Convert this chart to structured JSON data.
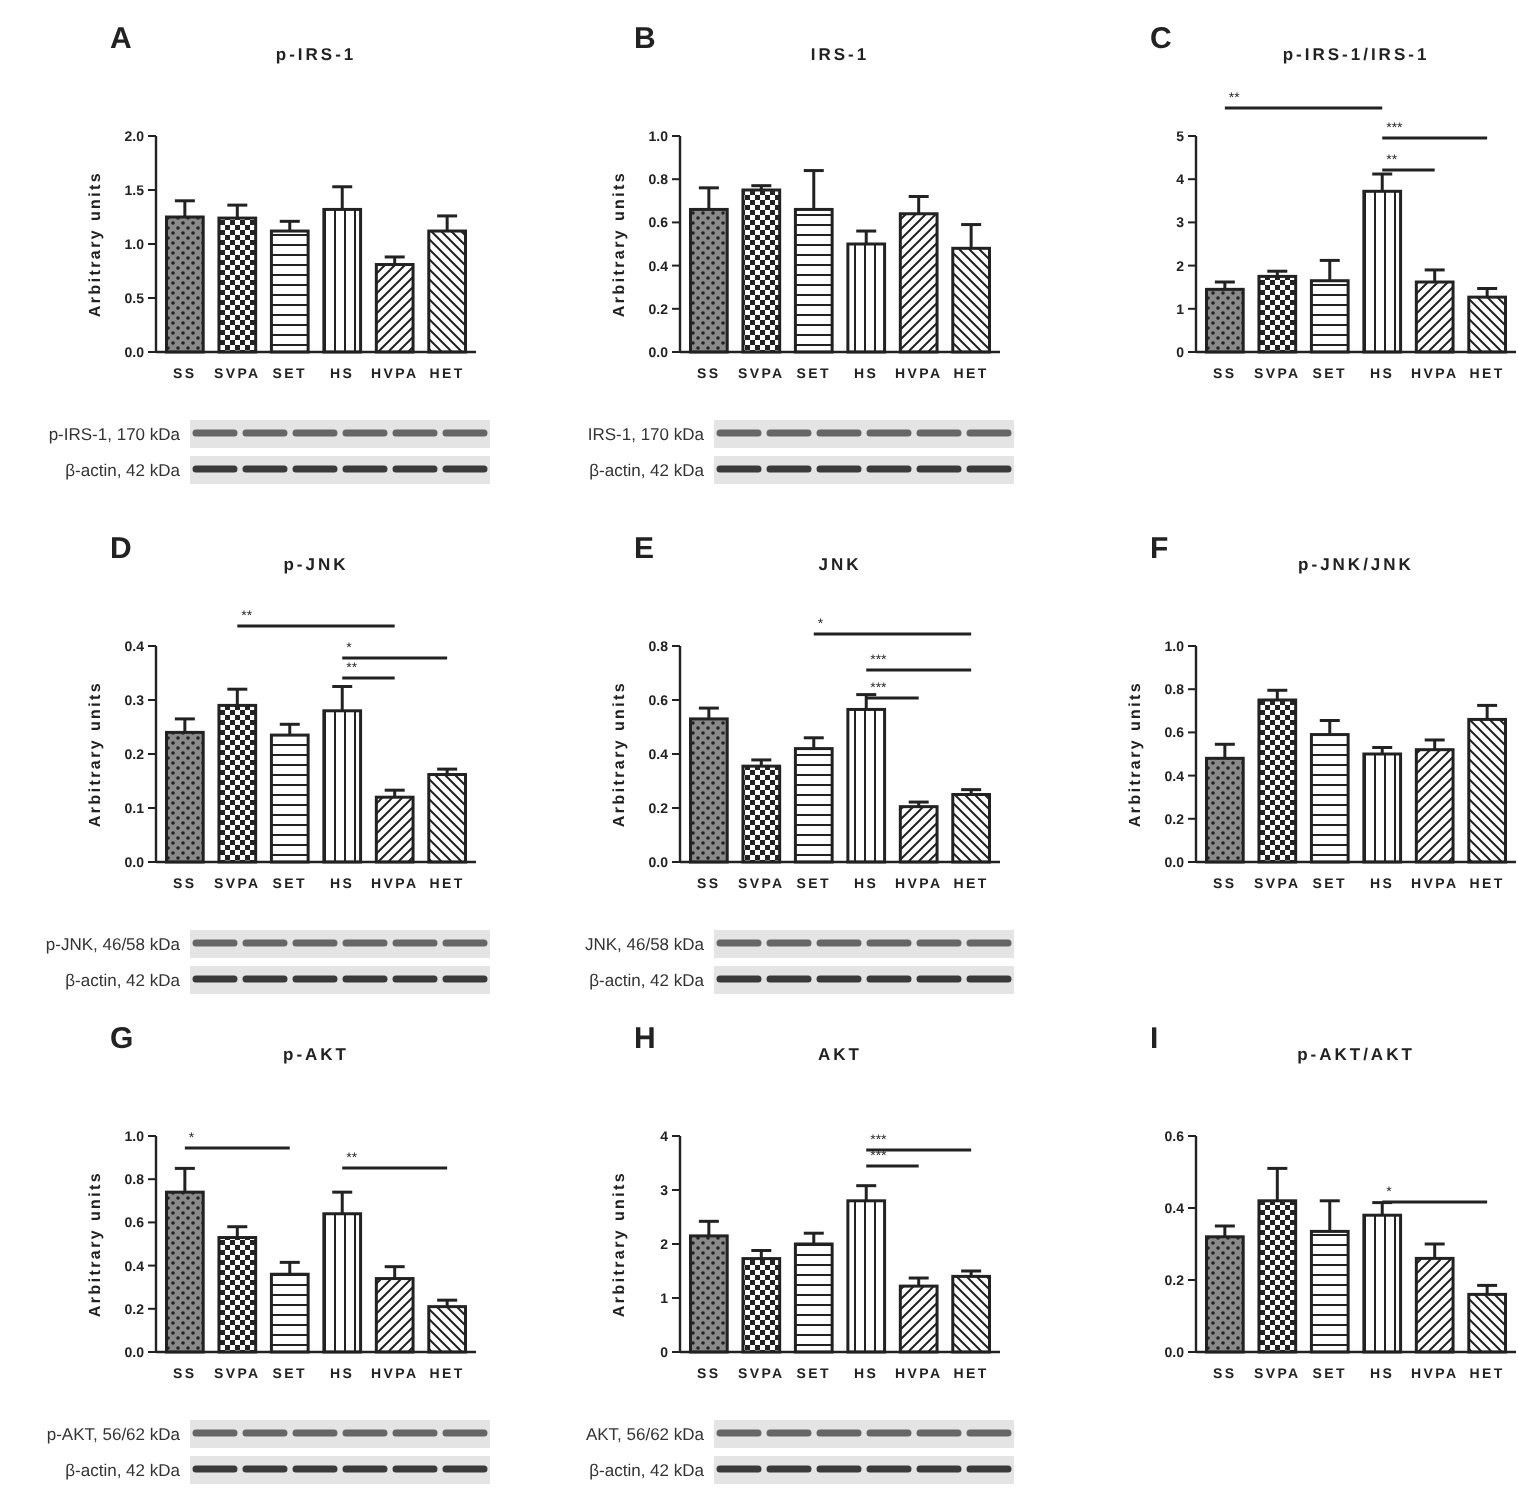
{
  "chart_data": [
    {
      "type": "bar",
      "title": "p-IRS-1",
      "ylabel": "Arbitrary units",
      "categories": [
        "SS",
        "SVPA",
        "SET",
        "HS",
        "HVPA",
        "HET"
      ],
      "values": [
        1.25,
        1.24,
        1.12,
        1.32,
        0.81,
        1.12
      ],
      "errors": [
        0.15,
        0.12,
        0.09,
        0.21,
        0.07,
        0.14
      ],
      "colors": [
        "#222222",
        "#222222",
        "#222222",
        "#222222",
        "#222222",
        "#222222"
      ],
      "ylim": [
        0,
        2
      ],
      "yticks": [
        {
          "value": 0,
          "label": "0.0"
        },
        0.5,
        {
          "value": 1,
          "label": "1.0"
        },
        1.5,
        {
          "value": 2,
          "label": "2.0"
        }
      ],
      "annotations": [
        "A",
        "p-IRS-1, 170 kDa",
        "β-actin, 42 kDa"
      ]
    },
    {
      "type": "bar",
      "title": "IRS-1",
      "ylabel": "Arbitrary units",
      "categories": [
        "SS",
        "SVPA",
        "SET",
        "HS",
        "HVPA",
        "HET"
      ],
      "values": [
        0.66,
        0.75,
        0.66,
        0.5,
        0.64,
        0.48
      ],
      "errors": [
        0.1,
        0.02,
        0.18,
        0.06,
        0.08,
        0.11
      ],
      "colors": [
        "#222222",
        "#222222",
        "#222222",
        "#222222",
        "#222222",
        "#222222"
      ],
      "ylim": [
        0,
        1
      ],
      "yticks": [
        {
          "value": 0,
          "label": "0.0"
        },
        0.2,
        0.4,
        0.6,
        0.8,
        {
          "value": 1,
          "label": "1.0"
        }
      ],
      "annotations": [
        "B",
        "IRS-1, 170 kDa",
        "β-actin, 42 kDa"
      ]
    },
    {
      "type": "bar",
      "title": "p-IRS-1/IRS-1",
      "categories": [
        "SS",
        "SVPA",
        "SET",
        "HS",
        "HVPA",
        "HET"
      ],
      "values": [
        1.45,
        1.75,
        1.65,
        3.72,
        1.62,
        1.27
      ],
      "errors": [
        0.17,
        0.12,
        0.47,
        0.4,
        0.28,
        0.2
      ],
      "colors": [
        "#222222",
        "#222222",
        "#222222",
        "#222222",
        "#222222",
        "#222222"
      ],
      "ylim": [
        0,
        5
      ],
      "yticks": [
        0,
        1,
        2,
        3,
        4,
        5
      ],
      "annotations": [
        "C",
        "**",
        "***",
        "**"
      ]
    },
    {
      "type": "bar",
      "title": "p-JNK",
      "ylabel": "Arbitrary units",
      "categories": [
        "SS",
        "SVPA",
        "SET",
        "HS",
        "HVPA",
        "HET"
      ],
      "values": [
        0.24,
        0.29,
        0.235,
        0.28,
        0.12,
        0.162
      ],
      "errors": [
        0.025,
        0.03,
        0.02,
        0.045,
        0.013,
        0.01
      ],
      "colors": [
        "#222222",
        "#222222",
        "#222222",
        "#222222",
        "#222222",
        "#222222"
      ],
      "ylim": [
        0,
        0.4
      ],
      "yticks": [
        {
          "value": 0,
          "label": "0.0"
        },
        0.1,
        0.2,
        0.3,
        0.4
      ],
      "annotations": [
        "D",
        "p-JNK, 46/58 kDa",
        "β-actin, 42 kDa",
        "**",
        "*",
        "**"
      ]
    },
    {
      "type": "bar",
      "title": "JNK",
      "ylabel": "Arbitrary units",
      "categories": [
        "SS",
        "SVPA",
        "SET",
        "HS",
        "HVPA",
        "HET"
      ],
      "values": [
        0.53,
        0.355,
        0.42,
        0.565,
        0.205,
        0.25
      ],
      "errors": [
        0.04,
        0.023,
        0.04,
        0.055,
        0.017,
        0.018
      ],
      "colors": [
        "#222222",
        "#222222",
        "#222222",
        "#222222",
        "#222222",
        "#222222"
      ],
      "ylim": [
        0,
        0.8
      ],
      "yticks": [
        {
          "value": 0,
          "label": "0.0"
        },
        0.2,
        0.4,
        0.6,
        0.8
      ],
      "annotations": [
        "E",
        "JNK, 46/58 kDa",
        "β-actin, 42 kDa",
        "*",
        "***",
        "***"
      ]
    },
    {
      "type": "bar",
      "title": "p-JNK/JNK",
      "ylabel": "Arbitrary units",
      "categories": [
        "SS",
        "SVPA",
        "SET",
        "HS",
        "HVPA",
        "HET"
      ],
      "values": [
        0.48,
        0.75,
        0.59,
        0.5,
        0.52,
        0.66
      ],
      "errors": [
        0.065,
        0.045,
        0.065,
        0.03,
        0.045,
        0.065
      ],
      "colors": [
        "#222222",
        "#222222",
        "#222222",
        "#222222",
        "#222222",
        "#222222"
      ],
      "ylim": [
        0,
        1
      ],
      "yticks": [
        {
          "value": 0,
          "label": "0.0"
        },
        0.2,
        0.4,
        0.6,
        0.8,
        {
          "value": 1,
          "label": "1.0"
        }
      ],
      "annotations": [
        "F"
      ]
    },
    {
      "type": "bar",
      "title": "p-AKT",
      "ylabel": "Arbitrary units",
      "categories": [
        "SS",
        "SVPA",
        "SET",
        "HS",
        "HVPA",
        "HET"
      ],
      "values": [
        0.74,
        0.53,
        0.36,
        0.64,
        0.34,
        0.21
      ],
      "errors": [
        0.11,
        0.05,
        0.055,
        0.1,
        0.055,
        0.03
      ],
      "colors": [
        "#222222",
        "#222222",
        "#222222",
        "#222222",
        "#222222",
        "#222222"
      ],
      "ylim": [
        0,
        1
      ],
      "yticks": [
        {
          "value": 0,
          "label": "0.0"
        },
        0.2,
        0.4,
        0.6,
        0.8,
        {
          "value": 1,
          "label": "1.0"
        }
      ],
      "annotations": [
        "G",
        "p-AKT, 56/62 kDa",
        "β-actin, 42 kDa",
        "*",
        "**"
      ]
    },
    {
      "type": "bar",
      "title": "AKT",
      "ylabel": "Arbitrary units",
      "categories": [
        "SS",
        "SVPA",
        "SET",
        "HS",
        "HVPA",
        "HET"
      ],
      "values": [
        2.15,
        1.73,
        2.0,
        2.8,
        1.22,
        1.4
      ],
      "errors": [
        0.27,
        0.15,
        0.2,
        0.28,
        0.15,
        0.1
      ],
      "colors": [
        "#222222",
        "#222222",
        "#222222",
        "#222222",
        "#222222",
        "#222222"
      ],
      "ylim": [
        0,
        4
      ],
      "yticks": [
        0,
        1,
        2,
        3,
        4
      ],
      "annotations": [
        "H",
        "AKT, 56/62 kDa",
        "β-actin, 42 kDa",
        "***",
        "***"
      ]
    },
    {
      "type": "bar",
      "title": "p-AKT/AKT",
      "categories": [
        "SS",
        "SVPA",
        "SET",
        "HS",
        "HVPA",
        "HET"
      ],
      "values": [
        0.32,
        0.42,
        0.335,
        0.38,
        0.26,
        0.16
      ],
      "errors": [
        0.03,
        0.09,
        0.085,
        0.035,
        0.04,
        0.025
      ],
      "colors": [
        "#222222",
        "#222222",
        "#222222",
        "#222222",
        "#222222",
        "#222222"
      ],
      "ylim": [
        0,
        0.6
      ],
      "yticks": [
        {
          "value": 0,
          "label": "0.0"
        },
        0.2,
        0.4,
        0.6
      ],
      "annotations": [
        "I",
        "*"
      ]
    }
  ]
}
